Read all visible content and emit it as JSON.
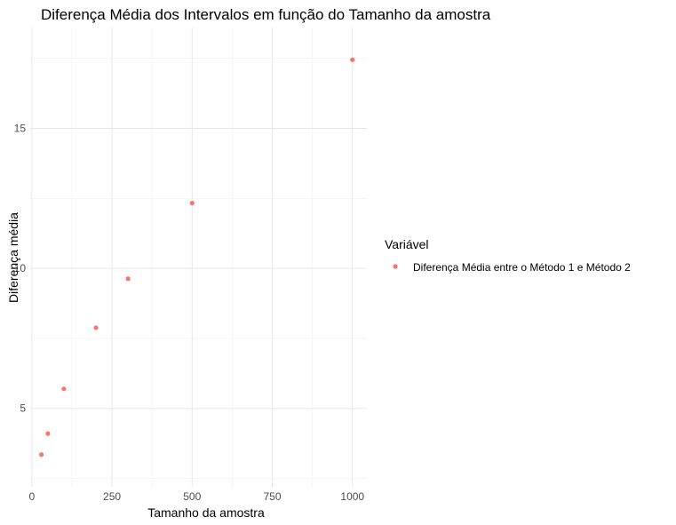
{
  "chart_data": {
    "type": "scatter",
    "title": "Diferença Média dos Intervalos em função do Tamanho da amostra",
    "xlabel": "Tamanho da amostra",
    "ylabel": "Diferença média",
    "xlim": [
      -5,
      1045
    ],
    "ylim": [
      2.2,
      18.6
    ],
    "x_ticks": [
      0,
      250,
      500,
      750,
      1000
    ],
    "x_tick_labels": [
      "0",
      "250",
      "500",
      "750",
      "1000"
    ],
    "y_ticks": [
      5,
      10,
      15
    ],
    "y_tick_labels": [
      "5",
      "10",
      "15"
    ],
    "grid": true,
    "legend": {
      "title": "Variável",
      "position": "right"
    },
    "series": [
      {
        "name": "Diferença Média entre o Método 1 e Método 2",
        "color": "#F8766D",
        "x": [
          30,
          50,
          100,
          200,
          300,
          500,
          1000
        ],
        "y": [
          3.35,
          4.1,
          5.7,
          7.88,
          9.63,
          12.33,
          17.45
        ]
      }
    ]
  }
}
